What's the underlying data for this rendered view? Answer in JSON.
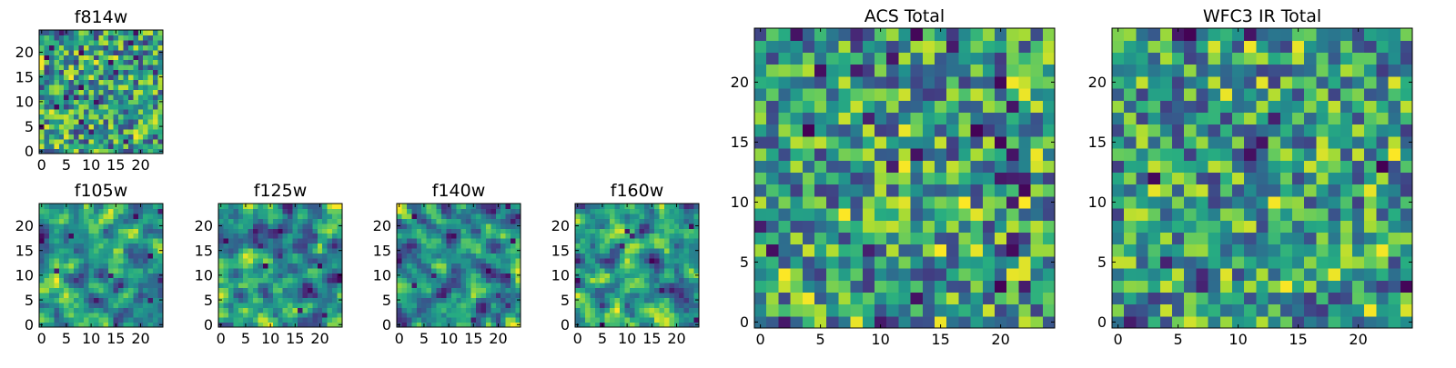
{
  "chart_data": [
    {
      "id": "f814w",
      "type": "heatmap",
      "title": "f814w",
      "xlabel": "",
      "ylabel": "",
      "xlim": [
        -0.5,
        24.5
      ],
      "ylim": [
        -0.5,
        24.5
      ],
      "xticks": [
        0,
        5,
        10,
        15,
        20
      ],
      "yticks": [
        0,
        5,
        10,
        15,
        20
      ],
      "grid_size": [
        25,
        25
      ],
      "colormap": "viridis",
      "seed": 11,
      "smooth": 0,
      "values": []
    },
    {
      "id": "f105w",
      "type": "heatmap",
      "title": "f105w",
      "xlabel": "",
      "ylabel": "",
      "xlim": [
        -0.5,
        24.5
      ],
      "ylim": [
        -0.5,
        24.5
      ],
      "xticks": [
        0,
        5,
        10,
        15,
        20
      ],
      "yticks": [
        0,
        5,
        10,
        15,
        20
      ],
      "grid_size": [
        25,
        25
      ],
      "colormap": "viridis",
      "seed": 23,
      "smooth": 1,
      "values": []
    },
    {
      "id": "f125w",
      "type": "heatmap",
      "title": "f125w",
      "xlabel": "",
      "ylabel": "",
      "xlim": [
        -0.5,
        24.5
      ],
      "ylim": [
        -0.5,
        24.5
      ],
      "xticks": [
        0,
        5,
        10,
        15,
        20
      ],
      "yticks": [
        0,
        5,
        10,
        15,
        20
      ],
      "grid_size": [
        25,
        25
      ],
      "colormap": "viridis",
      "seed": 37,
      "smooth": 1,
      "values": []
    },
    {
      "id": "f140w",
      "type": "heatmap",
      "title": "f140w",
      "xlabel": "",
      "ylabel": "",
      "xlim": [
        -0.5,
        24.5
      ],
      "ylim": [
        -0.5,
        24.5
      ],
      "xticks": [
        0,
        5,
        10,
        15,
        20
      ],
      "yticks": [
        0,
        5,
        10,
        15,
        20
      ],
      "grid_size": [
        25,
        25
      ],
      "colormap": "viridis",
      "seed": 41,
      "smooth": 1,
      "values": []
    },
    {
      "id": "f160w",
      "type": "heatmap",
      "title": "f160w",
      "xlabel": "",
      "ylabel": "",
      "xlim": [
        -0.5,
        24.5
      ],
      "ylim": [
        -0.5,
        24.5
      ],
      "xticks": [
        0,
        5,
        10,
        15,
        20
      ],
      "yticks": [
        0,
        5,
        10,
        15,
        20
      ],
      "grid_size": [
        25,
        25
      ],
      "colormap": "viridis",
      "seed": 53,
      "smooth": 1,
      "values": []
    },
    {
      "id": "acs_total",
      "type": "heatmap",
      "title": "ACS Total",
      "xlabel": "",
      "ylabel": "",
      "xlim": [
        -0.5,
        24.5
      ],
      "ylim": [
        -0.5,
        24.5
      ],
      "xticks": [
        0,
        5,
        10,
        15,
        20
      ],
      "yticks": [
        0,
        5,
        10,
        15,
        20
      ],
      "grid_size": [
        25,
        25
      ],
      "colormap": "viridis",
      "seed": 67,
      "smooth": 0,
      "values": []
    },
    {
      "id": "wfc3_ir_total",
      "type": "heatmap",
      "title": "WFC3 IR Total",
      "xlabel": "",
      "ylabel": "",
      "xlim": [
        -0.5,
        24.5
      ],
      "ylim": [
        -0.5,
        24.5
      ],
      "xticks": [
        0,
        5,
        10,
        15,
        20
      ],
      "yticks": [
        0,
        5,
        10,
        15,
        20
      ],
      "grid_size": [
        25,
        25
      ],
      "colormap": "viridis",
      "seed": 79,
      "smooth": 0,
      "values": []
    }
  ],
  "colors": {
    "background": "#ffffff",
    "axis": "#000000",
    "viridis_low": "#440154",
    "viridis_mid": "#21918c",
    "viridis_high": "#fde725"
  }
}
